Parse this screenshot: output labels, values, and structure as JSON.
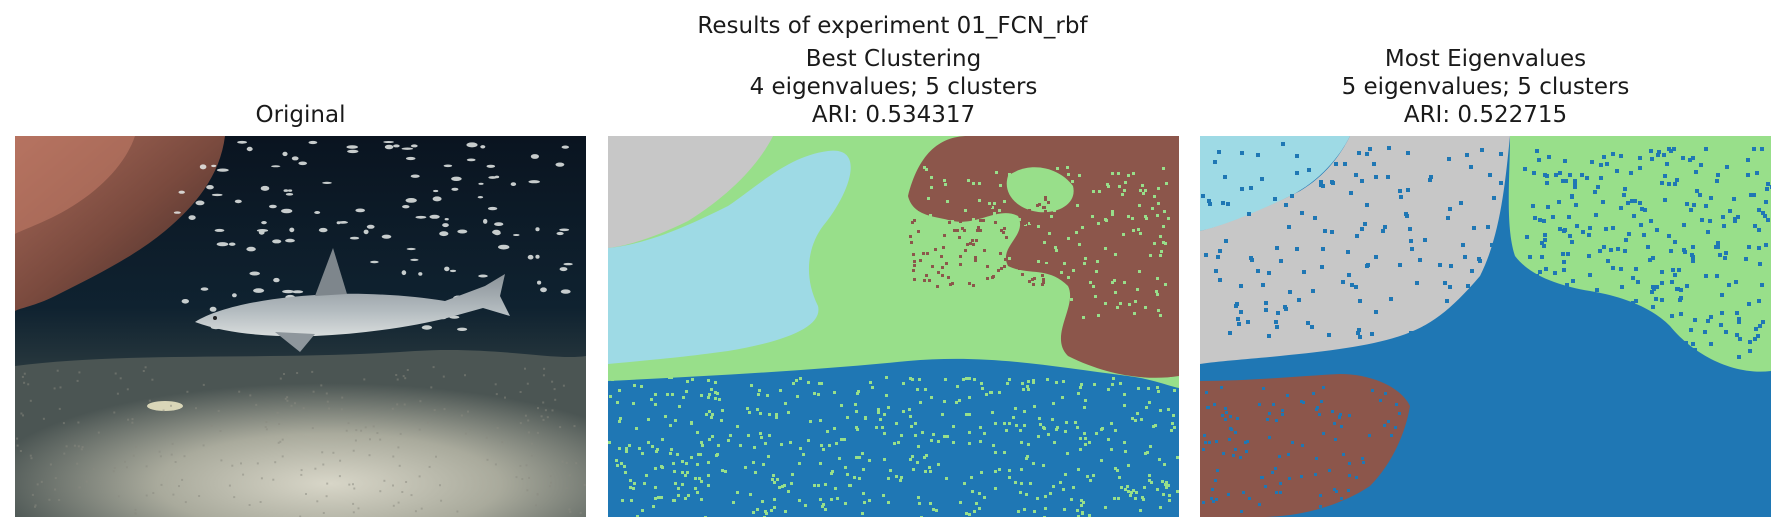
{
  "figure": {
    "suptitle": "Results of experiment 01_FCN_rbf"
  },
  "panels": [
    {
      "id": "original",
      "lines": [
        "Original"
      ]
    },
    {
      "id": "best",
      "lines": [
        "Best Clustering",
        "4 eigenvalues; 5 clusters",
        "ARI: 0.534317"
      ]
    },
    {
      "id": "most",
      "lines": [
        "Most Eigenvalues",
        "5 eigenvalues; 5 clusters",
        "ARI: 0.522715"
      ]
    }
  ],
  "cluster_colors": {
    "blue": "#1f77b4",
    "light_blue": "#9edae5",
    "light_green": "#98df8a",
    "brown": "#8c564b",
    "gray": "#c7c7c7"
  }
}
